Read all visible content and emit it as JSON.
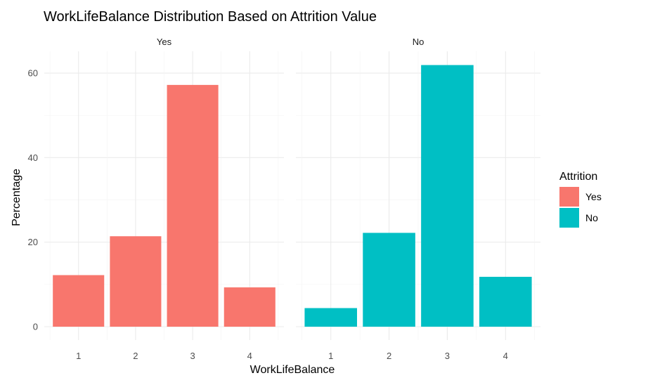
{
  "chart_data": {
    "type": "bar",
    "title": "WorkLifeBalance Distribution Based on Attrition Value",
    "xlabel": "WorkLifeBalance",
    "ylabel": "Percentage",
    "categories": [
      "1",
      "2",
      "3",
      "4"
    ],
    "ylim": [
      0,
      62
    ],
    "yticks": [
      0,
      20,
      40,
      60
    ],
    "grid": true,
    "legend": {
      "title": "Attrition",
      "placement": "right",
      "entries": [
        "Yes",
        "No"
      ]
    },
    "series": [
      {
        "name": "Yes",
        "color": "#F8766D",
        "values": [
          12.2,
          21.4,
          57.2,
          9.3
        ]
      },
      {
        "name": "No",
        "color": "#00BFC4",
        "values": [
          4.4,
          22.2,
          61.9,
          11.8
        ]
      }
    ]
  }
}
